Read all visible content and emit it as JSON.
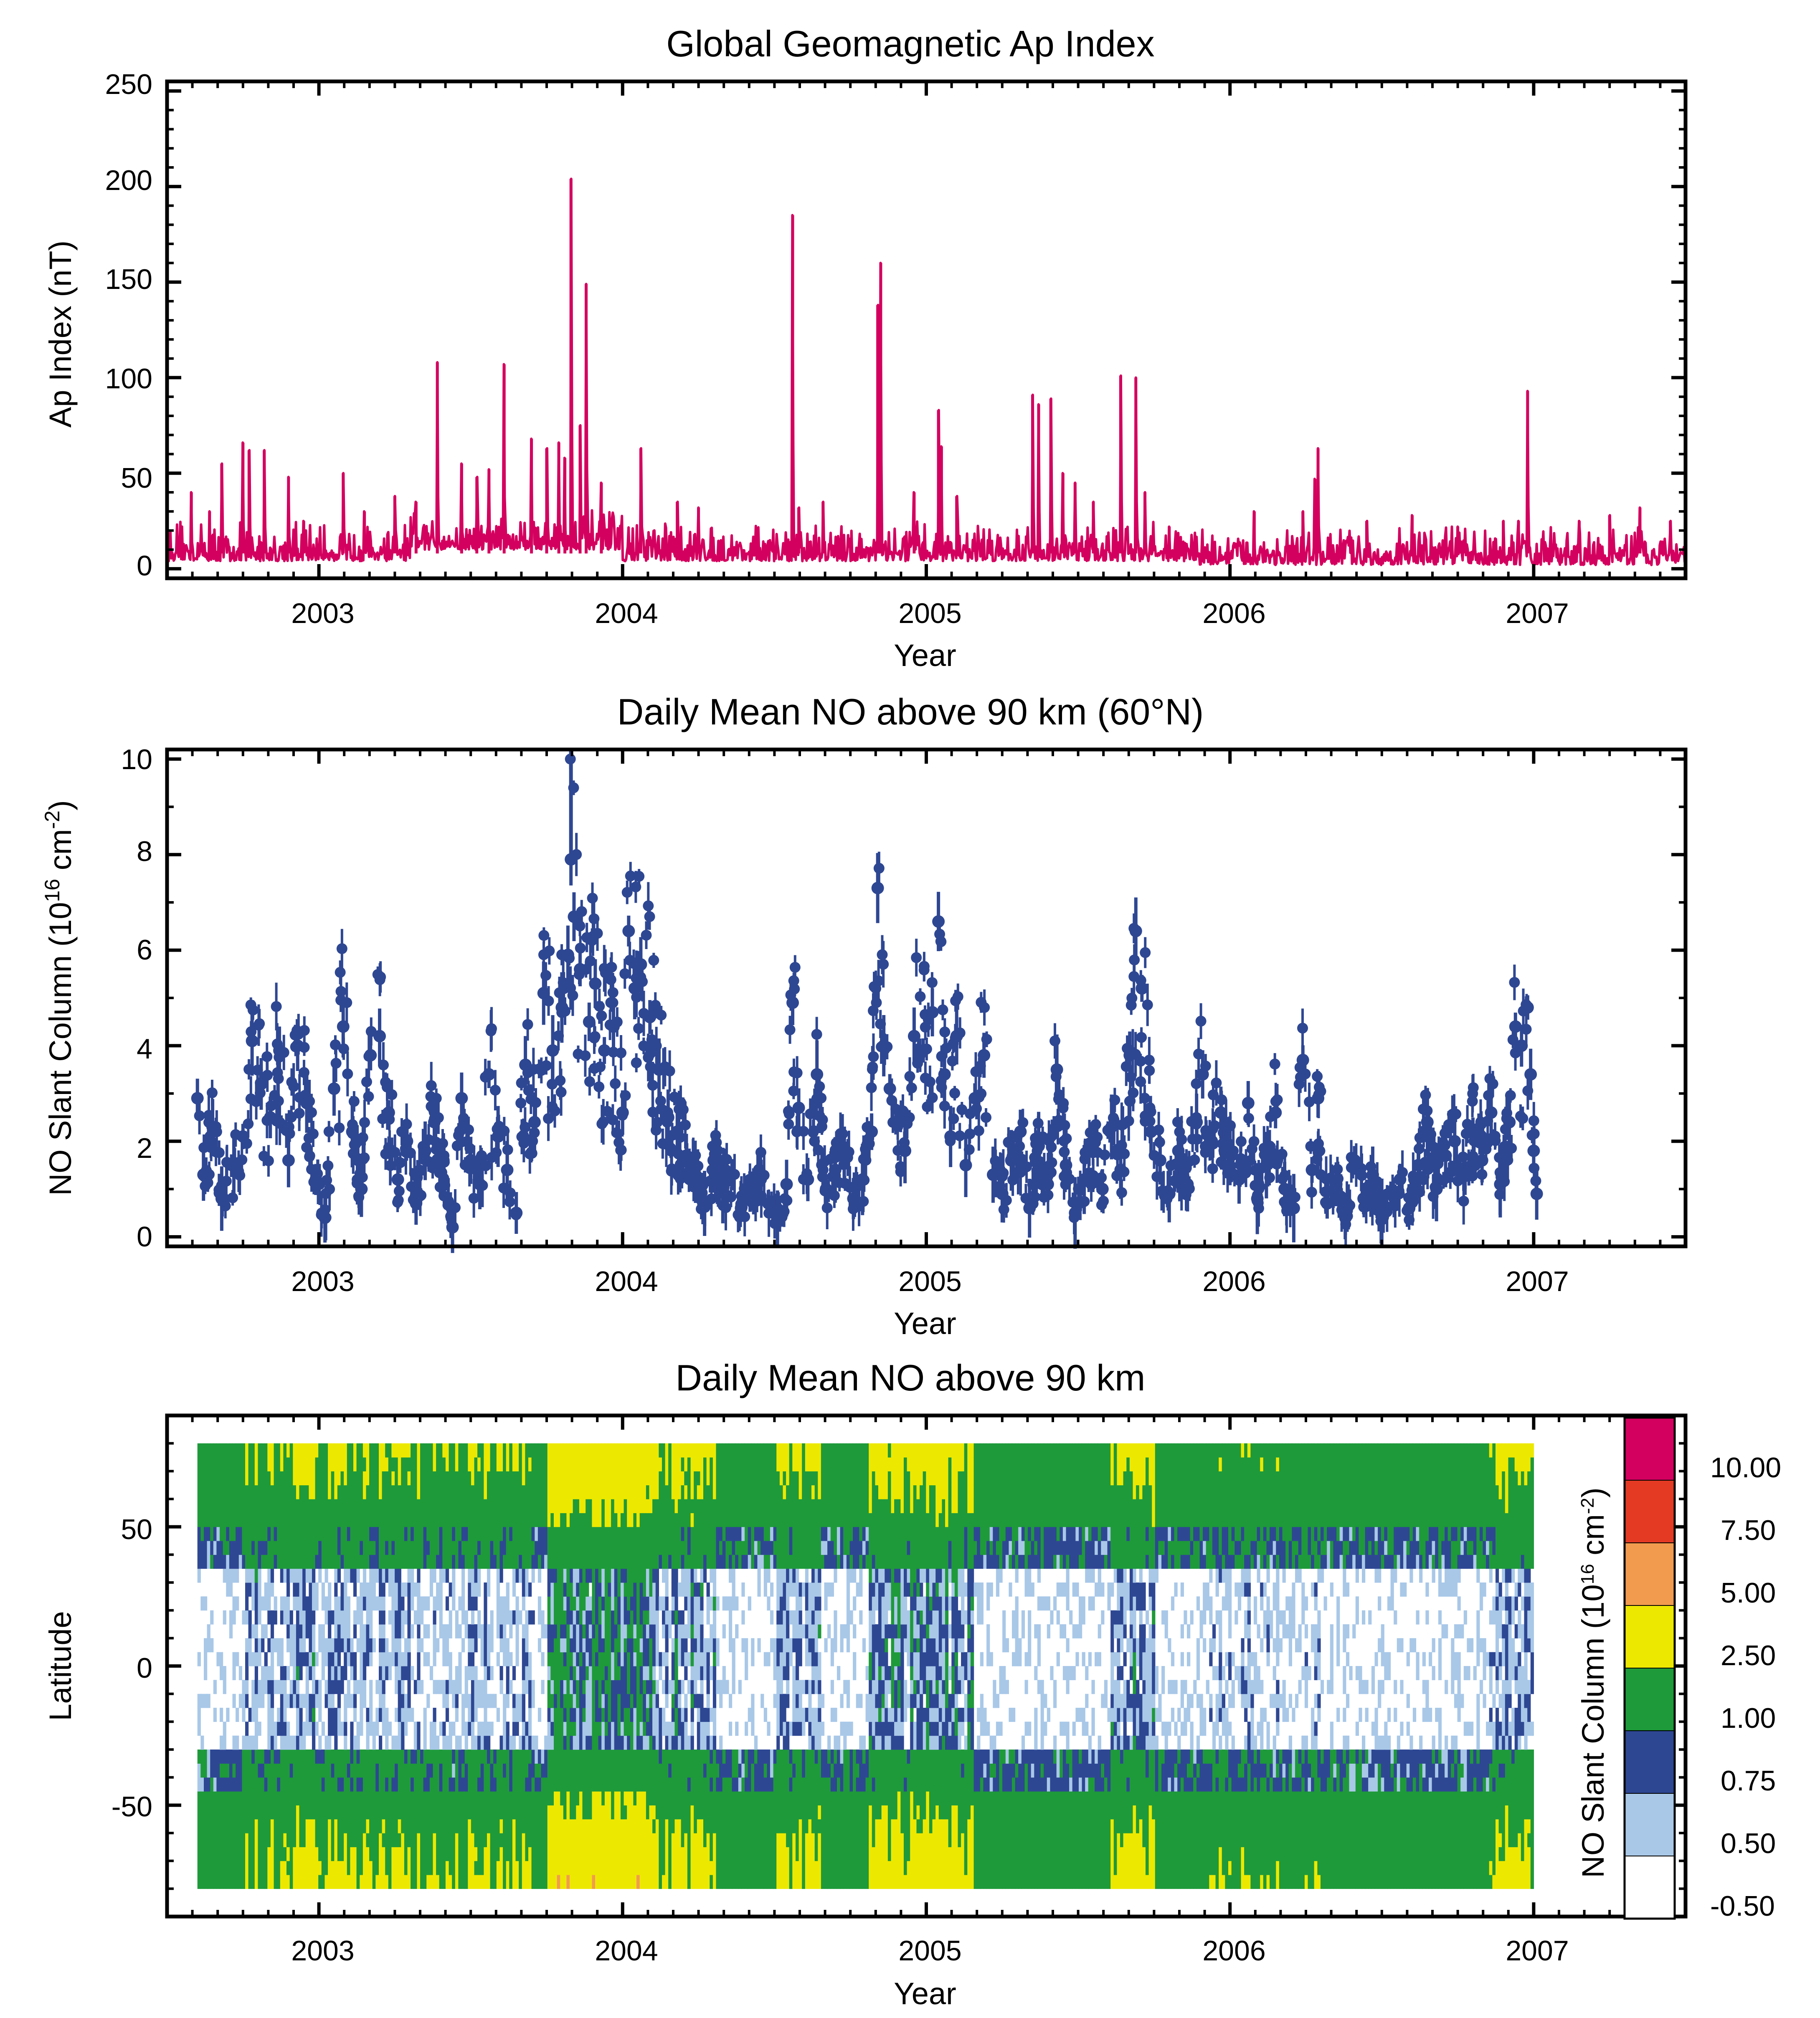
{
  "colors": {
    "ap_line": "#d4005f",
    "no_points": "#2e4793",
    "cb_white": "#ffffff",
    "cb_lightblue": "#a9c8e8",
    "cb_blue": "#2e4793",
    "cb_green": "#1e9a3a",
    "cb_yellow": "#ede800",
    "cb_orange": "#f29b4f",
    "cb_red": "#e43a24",
    "cb_magenta": "#d4005f"
  },
  "chart_data": [
    {
      "type": "line",
      "title": "Global Geomagnetic Ap Index",
      "xlabel": "Year",
      "ylabel": "Ap Index (nT)",
      "xlim": [
        2002.5,
        2007.5
      ],
      "ylim": [
        -5,
        255
      ],
      "xticks": [
        "2003",
        "2004",
        "2005",
        "2006",
        "2007"
      ],
      "yticks": [
        "0",
        "50",
        "100",
        "150",
        "200",
        "250"
      ],
      "baseline": 8,
      "spikes": [
        [
          2002.58,
          40
        ],
        [
          2002.64,
          30
        ],
        [
          2002.68,
          55
        ],
        [
          2002.75,
          66
        ],
        [
          2002.77,
          62
        ],
        [
          2002.82,
          62
        ],
        [
          2002.9,
          48
        ],
        [
          2002.95,
          25
        ],
        [
          2003.08,
          50
        ],
        [
          2003.15,
          30
        ],
        [
          2003.25,
          38
        ],
        [
          2003.32,
          35
        ],
        [
          2003.39,
          108
        ],
        [
          2003.47,
          55
        ],
        [
          2003.52,
          48
        ],
        [
          2003.56,
          52
        ],
        [
          2003.61,
          107
        ],
        [
          2003.7,
          68
        ],
        [
          2003.75,
          63
        ],
        [
          2003.79,
          66
        ],
        [
          2003.81,
          58
        ],
        [
          2003.83,
          204
        ],
        [
          2003.86,
          75
        ],
        [
          2003.88,
          149
        ],
        [
          2003.93,
          45
        ],
        [
          2004.06,
          63
        ],
        [
          2004.18,
          35
        ],
        [
          2004.25,
          32
        ],
        [
          2004.56,
          185
        ],
        [
          2004.58,
          32
        ],
        [
          2004.66,
          35
        ],
        [
          2004.84,
          138
        ],
        [
          2004.85,
          160
        ],
        [
          2004.96,
          40
        ],
        [
          2005.04,
          83
        ],
        [
          2005.05,
          64
        ],
        [
          2005.1,
          38
        ],
        [
          2005.35,
          91
        ],
        [
          2005.37,
          86
        ],
        [
          2005.41,
          89
        ],
        [
          2005.45,
          50
        ],
        [
          2005.49,
          45
        ],
        [
          2005.55,
          35
        ],
        [
          2005.64,
          101
        ],
        [
          2005.69,
          100
        ],
        [
          2005.72,
          40
        ],
        [
          2005.8,
          22
        ],
        [
          2006.08,
          30
        ],
        [
          2006.24,
          30
        ],
        [
          2006.28,
          47
        ],
        [
          2006.29,
          63
        ],
        [
          2006.45,
          25
        ],
        [
          2006.6,
          28
        ],
        [
          2006.75,
          22
        ],
        [
          2006.9,
          25
        ],
        [
          2006.95,
          25
        ],
        [
          2006.98,
          93
        ],
        [
          2007.15,
          25
        ],
        [
          2007.25,
          28
        ],
        [
          2007.35,
          32
        ],
        [
          2007.45,
          25
        ]
      ]
    },
    {
      "type": "scatter",
      "title": "Daily Mean NO above 90 km (60°N)",
      "xlabel": "Year",
      "ylabel": "NO Slant Column (10",
      "ylabel_sup1": "16",
      "ylabel_mid": " cm",
      "ylabel_sup2": "-2",
      "ylabel_end": ")",
      "xlim": [
        2002.5,
        2007.5
      ],
      "ylim": [
        -0.2,
        10.2
      ],
      "xticks": [
        "2003",
        "2004",
        "2005",
        "2006",
        "2007"
      ],
      "yticks": [
        "0",
        "2",
        "4",
        "6",
        "8",
        "10"
      ],
      "series": [
        {
          "name": "60N daily mean",
          "points": [
            [
              2002.6,
              2.9
            ],
            [
              2002.62,
              1.3
            ],
            [
              2002.65,
              2.3
            ],
            [
              2002.68,
              0.8
            ],
            [
              2002.72,
              1.5
            ],
            [
              2002.75,
              2.1
            ],
            [
              2002.78,
              4.1
            ],
            [
              2002.81,
              3.2
            ],
            [
              2002.84,
              2.5
            ],
            [
              2002.87,
              3.9
            ],
            [
              2002.9,
              1.6
            ],
            [
              2002.93,
              4.0
            ],
            [
              2002.96,
              2.8
            ],
            [
              2002.99,
              1.2
            ],
            [
              2003.02,
              0.4
            ],
            [
              2003.05,
              3.1
            ],
            [
              2003.08,
              4.4
            ],
            [
              2003.11,
              2.2
            ],
            [
              2003.14,
              1.0
            ],
            [
              2003.17,
              3.8
            ],
            [
              2003.2,
              4.2
            ],
            [
              2003.23,
              2.6
            ],
            [
              2003.26,
              1.2
            ],
            [
              2003.29,
              2.0
            ],
            [
              2003.32,
              0.7
            ],
            [
              2003.35,
              1.8
            ],
            [
              2003.38,
              2.4
            ],
            [
              2003.41,
              1.6
            ],
            [
              2003.44,
              0.2
            ],
            [
              2003.47,
              2.9
            ],
            [
              2003.5,
              1.6
            ],
            [
              2003.53,
              1.1
            ],
            [
              2003.56,
              3.4
            ],
            [
              2003.59,
              2.1
            ],
            [
              2003.62,
              1.4
            ],
            [
              2003.65,
              0.5
            ],
            [
              2003.68,
              3.6
            ],
            [
              2003.71,
              2.4
            ],
            [
              2003.74,
              5.1
            ],
            [
              2003.77,
              3.9
            ],
            [
              2003.8,
              4.8
            ],
            [
              2003.82,
              5.9
            ],
            [
              2003.83,
              7.9
            ],
            [
              2003.84,
              6.7
            ],
            [
              2003.86,
              5.6
            ],
            [
              2003.89,
              4.5
            ],
            [
              2003.91,
              5.3
            ],
            [
              2003.94,
              3.9
            ],
            [
              2003.97,
              4.4
            ],
            [
              2004.0,
              2.6
            ],
            [
              2004.02,
              6.4
            ],
            [
              2004.04,
              5.2
            ],
            [
              2004.06,
              5.7
            ],
            [
              2004.09,
              4.6
            ],
            [
              2004.12,
              3.5
            ],
            [
              2004.15,
              2.5
            ],
            [
              2004.18,
              2.2
            ],
            [
              2004.21,
              1.7
            ],
            [
              2004.24,
              1.3
            ],
            [
              2004.27,
              0.7
            ],
            [
              2004.3,
              1.6
            ],
            [
              2004.33,
              1.0
            ],
            [
              2004.36,
              1.3
            ],
            [
              2004.39,
              0.6
            ],
            [
              2004.42,
              0.9
            ],
            [
              2004.45,
              1.4
            ],
            [
              2004.48,
              0.7
            ],
            [
              2004.51,
              0.4
            ],
            [
              2004.54,
              1.1
            ],
            [
              2004.56,
              4.9
            ],
            [
              2004.58,
              2.7
            ],
            [
              2004.61,
              1.2
            ],
            [
              2004.64,
              3.4
            ],
            [
              2004.67,
              1.0
            ],
            [
              2004.7,
              1.4
            ],
            [
              2004.73,
              1.7
            ],
            [
              2004.76,
              0.8
            ],
            [
              2004.79,
              1.2
            ],
            [
              2004.82,
              2.2
            ],
            [
              2004.84,
              7.3
            ],
            [
              2004.86,
              4.0
            ],
            [
              2004.88,
              3.1
            ],
            [
              2004.9,
              2.4
            ],
            [
              2004.93,
              1.8
            ],
            [
              2004.96,
              4.2
            ],
            [
              2004.99,
              3.9
            ],
            [
              2005.02,
              4.7
            ],
            [
              2005.04,
              6.6
            ],
            [
              2005.06,
              3.4
            ],
            [
              2005.08,
              2.1
            ],
            [
              2005.1,
              4.2
            ],
            [
              2005.13,
              1.5
            ],
            [
              2005.16,
              2.9
            ],
            [
              2005.19,
              3.8
            ],
            [
              2005.22,
              1.3
            ],
            [
              2005.25,
              0.9
            ],
            [
              2005.28,
              1.6
            ],
            [
              2005.31,
              2.2
            ],
            [
              2005.34,
              0.6
            ],
            [
              2005.37,
              1.9
            ],
            [
              2005.4,
              1.1
            ],
            [
              2005.43,
              3.5
            ],
            [
              2005.46,
              1.5
            ],
            [
              2005.49,
              0.5
            ],
            [
              2005.52,
              1.2
            ],
            [
              2005.55,
              2.0
            ],
            [
              2005.58,
              1.0
            ],
            [
              2005.61,
              2.3
            ],
            [
              2005.64,
              1.4
            ],
            [
              2005.67,
              3.8
            ],
            [
              2005.69,
              6.4
            ],
            [
              2005.71,
              5.2
            ],
            [
              2005.74,
              2.2
            ],
            [
              2005.77,
              1.6
            ],
            [
              2005.8,
              0.9
            ],
            [
              2005.83,
              1.8
            ],
            [
              2005.86,
              1.1
            ],
            [
              2005.89,
              2.4
            ],
            [
              2005.91,
              3.4
            ],
            [
              2005.94,
              2.0
            ],
            [
              2005.97,
              2.6
            ],
            [
              2006.0,
              1.8
            ],
            [
              2006.03,
              1.2
            ],
            [
              2006.06,
              2.8
            ],
            [
              2006.09,
              0.8
            ],
            [
              2006.12,
              1.5
            ],
            [
              2006.15,
              2.6
            ],
            [
              2006.18,
              1.0
            ],
            [
              2006.21,
              0.6
            ],
            [
              2006.24,
              3.7
            ],
            [
              2006.27,
              1.4
            ],
            [
              2006.29,
              2.9
            ],
            [
              2006.32,
              0.7
            ],
            [
              2006.35,
              1.1
            ],
            [
              2006.38,
              0.4
            ],
            [
              2006.41,
              1.6
            ],
            [
              2006.44,
              0.8
            ],
            [
              2006.47,
              1.3
            ],
            [
              2006.5,
              0.5
            ],
            [
              2006.53,
              0.9
            ],
            [
              2006.56,
              1.2
            ],
            [
              2006.59,
              0.6
            ],
            [
              2006.62,
              1.5
            ],
            [
              2006.65,
              2.4
            ],
            [
              2006.68,
              1.0
            ],
            [
              2006.71,
              1.7
            ],
            [
              2006.74,
              2.0
            ],
            [
              2006.77,
              1.3
            ],
            [
              2006.8,
              2.2
            ],
            [
              2006.83,
              1.6
            ],
            [
              2006.86,
              2.6
            ],
            [
              2006.89,
              1.1
            ],
            [
              2006.92,
              2.4
            ],
            [
              2006.94,
              4.4
            ],
            [
              2006.96,
              4.0
            ],
            [
              2006.98,
              4.8
            ],
            [
              2006.99,
              3.4
            ],
            [
              2007.0,
              1.8
            ],
            [
              2007.01,
              0.9
            ]
          ]
        }
      ]
    },
    {
      "type": "heatmap",
      "title": "Daily Mean NO above 90 km",
      "xlabel": "Year",
      "ylabel": "Latitude",
      "xlim": [
        2002.5,
        2007.5
      ],
      "ylim": [
        -90,
        90
      ],
      "xticks": [
        "2003",
        "2004",
        "2005",
        "2006",
        "2007"
      ],
      "yticks": [
        "50",
        "0",
        "-50"
      ],
      "colorbar_label": "NO Slant Column (10",
      "colorbar_sup1": "16",
      "colorbar_mid": " cm",
      "colorbar_sup2": "-2",
      "colorbar_end": ")",
      "levels": [
        "-0.50",
        "0.50",
        "0.75",
        "1.00",
        "2.50",
        "5.00",
        "7.50",
        "10.00"
      ],
      "level_values": [
        -0.5,
        0.5,
        0.75,
        1.0,
        2.5,
        5.0,
        7.5,
        10.0,
        12.0
      ],
      "data_range_years": [
        2002.6,
        2007.0
      ],
      "lat_range": [
        -80,
        80
      ]
    }
  ]
}
